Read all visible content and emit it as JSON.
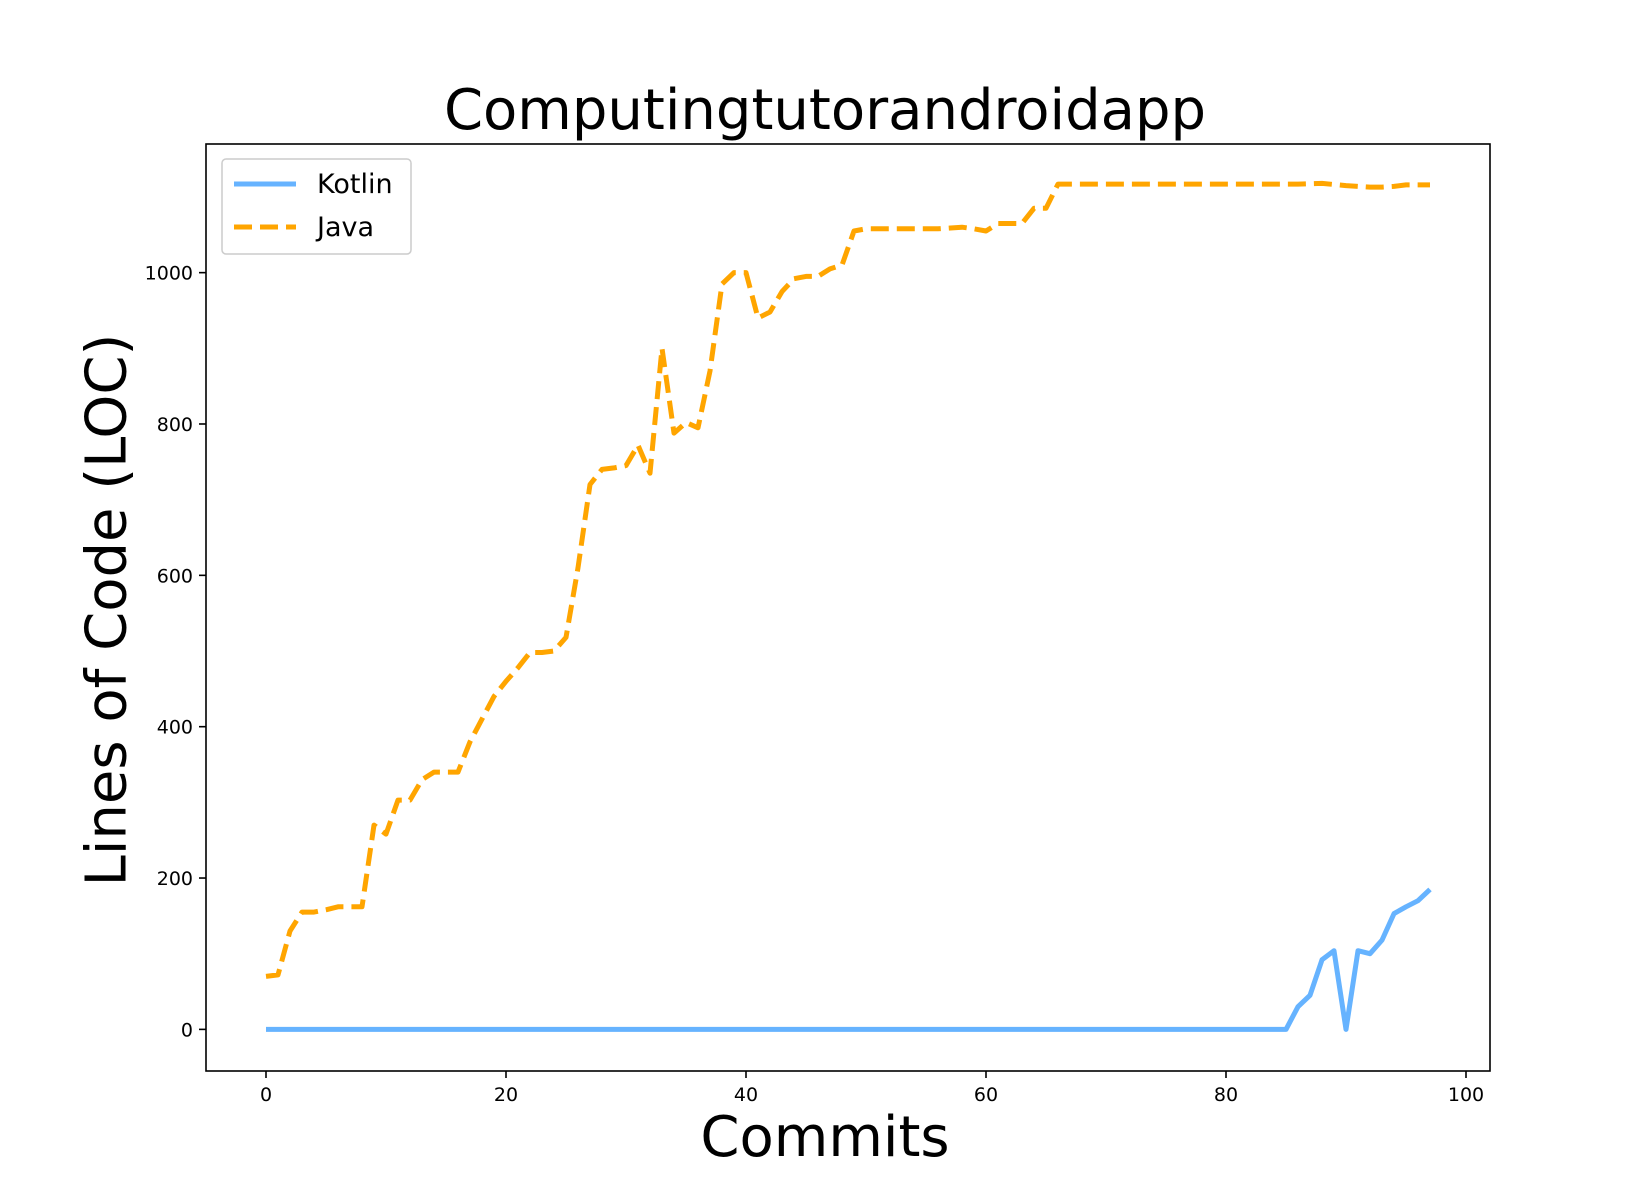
{
  "chart_data": {
    "type": "line",
    "title": "Computingtutorandroidapp",
    "xlabel": "Commits",
    "ylabel": "Lines of Code (LOC)",
    "xlim": [
      -5,
      102
    ],
    "ylim": [
      -55,
      1170
    ],
    "xticks": [
      0,
      20,
      40,
      60,
      80,
      100
    ],
    "yticks": [
      0,
      200,
      400,
      600,
      800,
      1000
    ],
    "grid": false,
    "legend_position": "top-left",
    "series": [
      {
        "name": "Kotlin",
        "color": "#66b3ff",
        "style": "solid",
        "x": [
          0,
          85,
          86,
          87,
          88,
          89,
          90,
          91,
          92,
          93,
          94,
          95,
          96,
          97
        ],
        "y": [
          0,
          0,
          30,
          45,
          92,
          104,
          0,
          104,
          100,
          118,
          153,
          162,
          170,
          185
        ]
      },
      {
        "name": "Java",
        "color": "#ffa500",
        "style": "dashed",
        "x": [
          0,
          1,
          2,
          3,
          4,
          5,
          6,
          7,
          8,
          9,
          10,
          11,
          12,
          13,
          14,
          15,
          16,
          17,
          18,
          19,
          20,
          21,
          22,
          23,
          24,
          25,
          26,
          27,
          28,
          29,
          30,
          31,
          32,
          33,
          34,
          35,
          36,
          37,
          38,
          39,
          40,
          41,
          42,
          43,
          44,
          45,
          46,
          47,
          48,
          49,
          50,
          52,
          54,
          56,
          58,
          59,
          60,
          61,
          62,
          63,
          64,
          65,
          66,
          68,
          70,
          72,
          74,
          76,
          78,
          80,
          82,
          84,
          86,
          88,
          90,
          92,
          93,
          94,
          95,
          96,
          97
        ],
        "y": [
          70,
          72,
          130,
          155,
          155,
          158,
          162,
          162,
          162,
          270,
          258,
          303,
          303,
          330,
          340,
          340,
          340,
          380,
          410,
          440,
          460,
          478,
          498,
          498,
          500,
          518,
          610,
          720,
          740,
          742,
          745,
          772,
          735,
          900,
          788,
          802,
          795,
          870,
          985,
          1000,
          1000,
          940,
          948,
          975,
          992,
          995,
          995,
          1005,
          1010,
          1055,
          1058,
          1058,
          1058,
          1058,
          1060,
          1058,
          1055,
          1065,
          1065,
          1065,
          1085,
          1085,
          1117,
          1117,
          1117,
          1117,
          1117,
          1117,
          1117,
          1117,
          1117,
          1117,
          1117,
          1118,
          1115,
          1113,
          1113,
          1114,
          1116,
          1116,
          1116
        ]
      }
    ]
  }
}
